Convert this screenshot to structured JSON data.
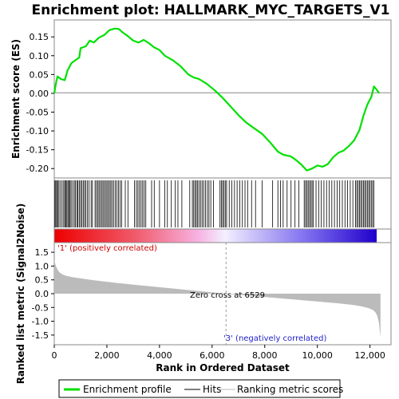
{
  "chart_data": {
    "type": "line",
    "title": "Enrichment plot: HALLMARK_MYC_TARGETS_V1",
    "xlabel": "Rank in Ordered Dataset",
    "es_ylabel": "Enrichment score (ES)",
    "metric_ylabel": "Ranked list metric (Signal2Noise)",
    "xlim": [
      0,
      12800
    ],
    "es_ylim": [
      -0.225,
      0.195
    ],
    "metric_ylim": [
      -1.85,
      1.85
    ],
    "x_ticks": [
      0,
      2000,
      4000,
      6000,
      8000,
      10000,
      12000
    ],
    "x_tick_labels": [
      "0",
      "2,000",
      "4,000",
      "6,000",
      "8,000",
      "10,000",
      "12,000"
    ],
    "es_ticks": [
      -0.2,
      -0.15,
      -0.1,
      -0.05,
      0.0,
      0.05,
      0.1,
      0.15
    ],
    "es_tick_labels": [
      "-0.20",
      "-0.15",
      "-0.10",
      "-0.05",
      "0.00",
      "0.05",
      "0.10",
      "0.15"
    ],
    "metric_ticks": [
      -1.5,
      -1.0,
      -0.5,
      0.0,
      0.5,
      1.0,
      1.5
    ],
    "metric_tick_labels": [
      "-1.5",
      "-1.0",
      "-0.5",
      "0.0",
      "0.5",
      "1.0",
      "1.5"
    ],
    "n_genes": 12400,
    "zero_cross": 6529,
    "zero_cross_label": "Zero cross at 6529",
    "pos_label": "'1' (positively correlated)",
    "neg_label": "'3' (negatively correlated)",
    "es_points": [
      [
        0,
        0.0
      ],
      [
        60,
        0.025
      ],
      [
        120,
        0.045
      ],
      [
        250,
        0.038
      ],
      [
        400,
        0.035
      ],
      [
        500,
        0.06
      ],
      [
        650,
        0.08
      ],
      [
        800,
        0.088
      ],
      [
        950,
        0.095
      ],
      [
        1000,
        0.12
      ],
      [
        1200,
        0.125
      ],
      [
        1350,
        0.14
      ],
      [
        1500,
        0.135
      ],
      [
        1700,
        0.148
      ],
      [
        1900,
        0.155
      ],
      [
        2100,
        0.168
      ],
      [
        2300,
        0.172
      ],
      [
        2450,
        0.171
      ],
      [
        2600,
        0.162
      ],
      [
        2800,
        0.152
      ],
      [
        3000,
        0.14
      ],
      [
        3200,
        0.135
      ],
      [
        3400,
        0.142
      ],
      [
        3600,
        0.133
      ],
      [
        3800,
        0.122
      ],
      [
        4000,
        0.115
      ],
      [
        4200,
        0.1
      ],
      [
        4500,
        0.088
      ],
      [
        4800,
        0.072
      ],
      [
        5100,
        0.05
      ],
      [
        5300,
        0.042
      ],
      [
        5500,
        0.038
      ],
      [
        5800,
        0.025
      ],
      [
        6100,
        0.008
      ],
      [
        6400,
        -0.012
      ],
      [
        6700,
        -0.035
      ],
      [
        7000,
        -0.058
      ],
      [
        7300,
        -0.078
      ],
      [
        7600,
        -0.093
      ],
      [
        7900,
        -0.108
      ],
      [
        8200,
        -0.13
      ],
      [
        8500,
        -0.155
      ],
      [
        8700,
        -0.163
      ],
      [
        9000,
        -0.168
      ],
      [
        9200,
        -0.178
      ],
      [
        9400,
        -0.19
      ],
      [
        9600,
        -0.205
      ],
      [
        9800,
        -0.2
      ],
      [
        10000,
        -0.192
      ],
      [
        10200,
        -0.195
      ],
      [
        10400,
        -0.188
      ],
      [
        10600,
        -0.17
      ],
      [
        10800,
        -0.158
      ],
      [
        11000,
        -0.152
      ],
      [
        11200,
        -0.14
      ],
      [
        11400,
        -0.125
      ],
      [
        11600,
        -0.098
      ],
      [
        11750,
        -0.06
      ],
      [
        11900,
        -0.03
      ],
      [
        12050,
        -0.01
      ],
      [
        12150,
        0.018
      ],
      [
        12250,
        0.01
      ],
      [
        12350,
        0.0
      ]
    ],
    "hits": [
      25,
      60,
      95,
      140,
      180,
      240,
      300,
      360,
      400,
      440,
      480,
      520,
      560,
      600,
      640,
      700,
      760,
      800,
      860,
      900,
      950,
      1000,
      1050,
      1100,
      1150,
      1200,
      1260,
      1320,
      1400,
      1450,
      1550,
      1600,
      1650,
      1700,
      1750,
      1800,
      1850,
      1900,
      1950,
      2000,
      2050,
      2100,
      2150,
      2200,
      2260,
      2320,
      2380,
      2440,
      2500,
      2560,
      2700,
      2800,
      3050,
      3120,
      3180,
      3240,
      3300,
      3360,
      3420,
      3480,
      3700,
      3800,
      4000,
      4200,
      4300,
      4450,
      4600,
      4700,
      4850,
      5150,
      5250,
      5300,
      5350,
      5400,
      5450,
      5500,
      5560,
      5620,
      5680,
      5750,
      5820,
      5880,
      5950,
      6050,
      6300,
      6350,
      6400,
      6450,
      6500,
      6550,
      6650,
      6750,
      6850,
      6950,
      7050,
      7150,
      7250,
      7350,
      7500,
      7650,
      7900,
      8300,
      8500,
      8600,
      8700,
      8850,
      9000,
      9150,
      9300,
      9500,
      9550,
      9600,
      9650,
      9700,
      9750,
      9800,
      9850,
      9950,
      10050,
      10150,
      10250,
      10350,
      10450,
      10550,
      10650,
      10750,
      10850,
      10950,
      11050,
      11150,
      11250,
      11350,
      11450,
      11500,
      11550,
      11600,
      11650,
      11700,
      11750,
      11800,
      11850,
      11900,
      11950,
      12000,
      12050,
      12100,
      12150
    ]
  },
  "legend": {
    "items": [
      {
        "label": "Enrichment profile",
        "color": "#00dd00"
      },
      {
        "label": "Hits",
        "color": "#000000"
      },
      {
        "label": "Ranking metric scores",
        "color": "#bbbbbb"
      }
    ]
  }
}
